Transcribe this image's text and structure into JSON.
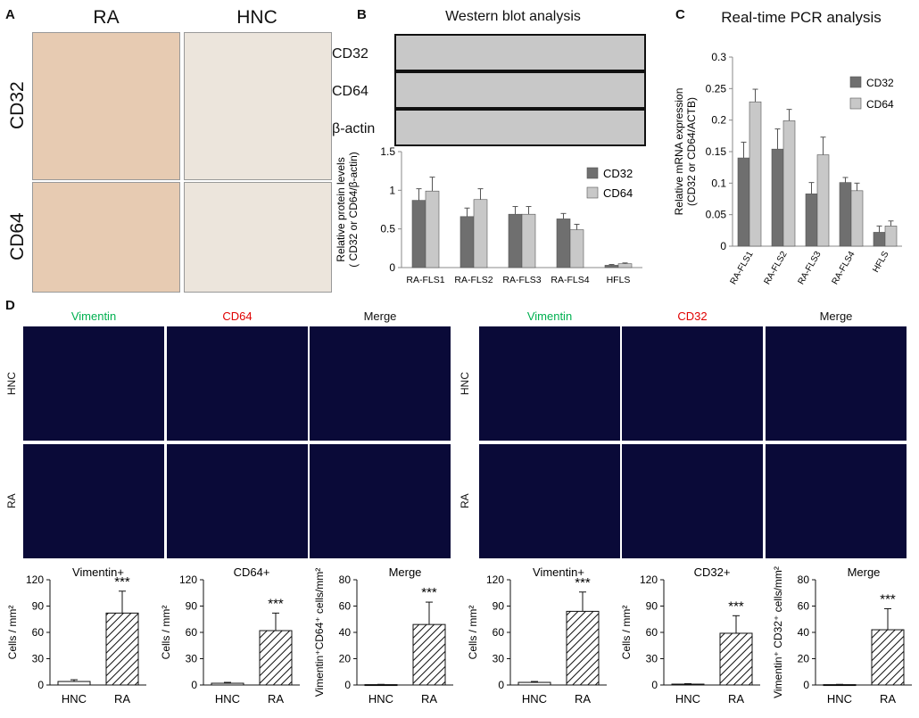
{
  "panel_a": {
    "letter": "A",
    "col_headers": [
      "RA",
      "HNC"
    ],
    "row_headers": [
      "CD32",
      "CD64"
    ]
  },
  "panel_b": {
    "letter": "B",
    "title": "Western blot analysis",
    "blot_labels": [
      "CD32",
      "CD64",
      "β-actin"
    ]
  },
  "panel_c": {
    "letter": "C",
    "title": "Real-time PCR analysis"
  },
  "panel_d": {
    "letter": "D",
    "left_titles": [
      "Vimentin",
      "CD64",
      "Merge"
    ],
    "right_titles": [
      "Vimentin",
      "CD32",
      "Merge"
    ],
    "row_labels": [
      "HNC",
      "RA"
    ],
    "title_colors": [
      "#00b050",
      "#e00000",
      "#111111"
    ]
  },
  "colors": {
    "cd32_bar": "#6f6f6f",
    "cd64_bar": "#c8c8c8",
    "microscopy_bg": "#0a0a38",
    "ra_ihc": "#e7cbb2",
    "hnc_ihc": "#ece5dc"
  },
  "chart_data": [
    {
      "id": "B",
      "type": "bar",
      "categories": [
        "RA-FLS1",
        "RA-FLS2",
        "RA-FLS3",
        "RA-FLS4",
        "HFLS"
      ],
      "series": [
        {
          "name": "CD32",
          "values": [
            0.87,
            0.66,
            0.69,
            0.63,
            0.03
          ],
          "errors": [
            0.15,
            0.11,
            0.1,
            0.07,
            0.01
          ]
        },
        {
          "name": "CD64",
          "values": [
            0.99,
            0.88,
            0.69,
            0.49,
            0.05
          ],
          "errors": [
            0.18,
            0.14,
            0.1,
            0.07,
            0.01
          ]
        }
      ],
      "ylabel": "Relative protein levels\n( CD32 or CD64/β-actin)",
      "ylim": [
        0,
        1.5
      ],
      "yticks": [
        "0",
        "0.5",
        "1",
        "1.5"
      ],
      "legend": "right"
    },
    {
      "id": "C",
      "type": "bar",
      "categories": [
        "RA-FLS1",
        "RA-FLS2",
        "RA-FLS3",
        "RA-FLS4",
        "HFLS"
      ],
      "series": [
        {
          "name": "CD32",
          "values": [
            0.14,
            0.154,
            0.083,
            0.101,
            0.022
          ],
          "errors": [
            0.025,
            0.032,
            0.018,
            0.008,
            0.01
          ]
        },
        {
          "name": "CD64",
          "values": [
            0.229,
            0.199,
            0.145,
            0.088,
            0.032
          ],
          "errors": [
            0.02,
            0.018,
            0.028,
            0.012,
            0.008
          ]
        }
      ],
      "ylabel": "Relative mRNA expression\n(CD32 or CD64/ACTB)",
      "ylim": [
        0,
        0.3
      ],
      "yticks": [
        "0",
        "0.05",
        "0.1",
        "0.15",
        "0.2",
        "0.25",
        "0.3"
      ],
      "legend": "top-right"
    },
    {
      "id": "D1",
      "type": "bar",
      "title": "Vimentin+",
      "categories": [
        "HNC",
        "RA"
      ],
      "values": [
        4,
        82
      ],
      "errors": [
        2,
        25
      ],
      "ylabel": "Cells / mm²",
      "ylim": [
        0,
        120
      ],
      "yticks": [
        "0",
        "30",
        "60",
        "90",
        "120"
      ],
      "annotation": "***"
    },
    {
      "id": "D2",
      "type": "bar",
      "title": "CD64+",
      "categories": [
        "HNC",
        "RA"
      ],
      "values": [
        2,
        62
      ],
      "errors": [
        1,
        20
      ],
      "ylabel": "Cells / mm²",
      "ylim": [
        0,
        120
      ],
      "yticks": [
        "0",
        "30",
        "60",
        "90",
        "120"
      ],
      "annotation": "***"
    },
    {
      "id": "D3",
      "type": "bar",
      "title": "Merge",
      "categories": [
        "HNC",
        "RA"
      ],
      "values": [
        0.3,
        46
      ],
      "errors": [
        0.2,
        17
      ],
      "ylabel": "Vimentin⁺CD64⁺ cells/mm²",
      "ylim": [
        0,
        80
      ],
      "yticks": [
        "0",
        "20",
        "40",
        "60",
        "80"
      ],
      "annotation": "***"
    },
    {
      "id": "D4",
      "type": "bar",
      "title": "Vimentin+",
      "categories": [
        "HNC",
        "RA"
      ],
      "values": [
        3,
        84
      ],
      "errors": [
        1,
        22
      ],
      "ylabel": "Cells / mm²",
      "ylim": [
        0,
        120
      ],
      "yticks": [
        "0",
        "30",
        "60",
        "90",
        "120"
      ],
      "annotation": "***"
    },
    {
      "id": "D5",
      "type": "bar",
      "title": "CD32+",
      "categories": [
        "HNC",
        "RA"
      ],
      "values": [
        1,
        59
      ],
      "errors": [
        0.5,
        20
      ],
      "ylabel": "Cells / mm²",
      "ylim": [
        0,
        120
      ],
      "yticks": [
        "0",
        "30",
        "60",
        "90",
        "120"
      ],
      "annotation": "***"
    },
    {
      "id": "D6",
      "type": "bar",
      "title": "Merge",
      "categories": [
        "HNC",
        "RA"
      ],
      "values": [
        0.3,
        42
      ],
      "errors": [
        0.2,
        16
      ],
      "ylabel": "Vimentin⁺ CD32⁺ cells/mm²",
      "ylim": [
        0,
        80
      ],
      "yticks": [
        "0",
        "20",
        "40",
        "60",
        "80"
      ],
      "annotation": "***"
    }
  ]
}
